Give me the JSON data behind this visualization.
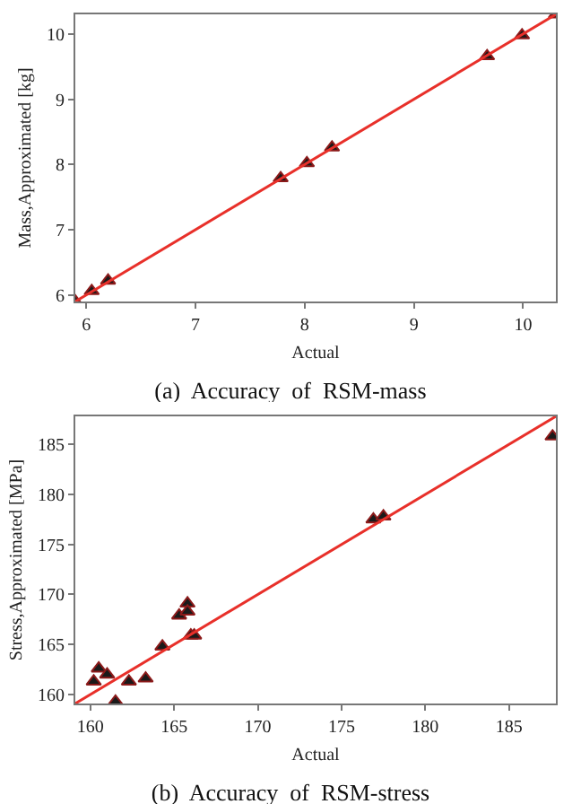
{
  "chart_data": [
    {
      "type": "scatter",
      "title": "(a)  Accuracy  of  RSM-mass",
      "xlabel": "Actual",
      "ylabel": "Mass,Approximated [kg]",
      "xlim": [
        5.9,
        10.3
      ],
      "ylim": [
        5.9,
        10.3
      ],
      "xticks": [
        6,
        7,
        8,
        9,
        10
      ],
      "yticks": [
        6,
        7,
        8,
        9,
        10
      ],
      "grid": false,
      "marker": "triangle",
      "series": [
        {
          "color": "#1a1a1a",
          "x": [
            5.9,
            6.05,
            6.2,
            7.78,
            8.02,
            8.25,
            9.67,
            9.99,
            10.3
          ],
          "values": [
            5.9,
            6.06,
            6.22,
            7.79,
            8.02,
            8.26,
            9.66,
            9.98,
            10.3
          ]
        },
        {
          "type": "line",
          "color": "#e8302a",
          "x": [
            5.9,
            10.3
          ],
          "values": [
            5.9,
            10.3
          ],
          "line_style": "solid",
          "marker": "none"
        }
      ]
    },
    {
      "type": "scatter",
      "title": "(b)  Accuracy  of  RSM-stress",
      "xlabel": "Actual",
      "ylabel": "Stress,Approximated [MPa]",
      "xlim": [
        159.1,
        187.8
      ],
      "ylim": [
        159.1,
        187.8
      ],
      "xticks": [
        160,
        165,
        170,
        175,
        180,
        185
      ],
      "yticks": [
        160,
        165,
        170,
        175,
        180,
        185
      ],
      "grid": false,
      "marker": "triangle",
      "series": [
        {
          "color": "#1a1a1a",
          "x": [
            160.2,
            160.5,
            161.0,
            161.5,
            162.3,
            163.3,
            164.3,
            165.3,
            165.8,
            165.8,
            166.0,
            166.2,
            176.9,
            177.5,
            187.6
          ],
          "values": [
            161.3,
            162.6,
            162.0,
            159.3,
            161.3,
            161.6,
            164.8,
            167.9,
            169.1,
            168.3,
            165.9,
            165.9,
            177.5,
            177.8,
            185.8
          ]
        },
        {
          "type": "line",
          "color": "#e8302a",
          "x": [
            159.1,
            187.8
          ],
          "values": [
            159.1,
            187.8
          ],
          "line_style": "solid",
          "marker": "none"
        }
      ]
    }
  ]
}
